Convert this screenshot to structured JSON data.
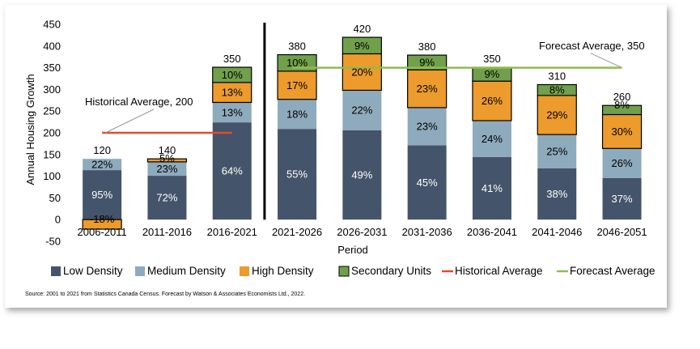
{
  "chart_data": {
    "type": "bar",
    "stacked": true,
    "xlabel": "Period",
    "ylabel": "Annual Housing Growth",
    "ylim": [
      -50,
      450
    ],
    "yticks": [
      -50,
      0,
      50,
      100,
      150,
      200,
      250,
      300,
      350,
      400,
      450
    ],
    "categories": [
      "2006-2011",
      "2011-2016",
      "2016-2021",
      "2021-2026",
      "2026-2031",
      "2031-2036",
      "2036-2041",
      "2041-2046",
      "2046-2051"
    ],
    "totals": [
      120,
      140,
      350,
      380,
      420,
      380,
      350,
      310,
      260
    ],
    "series": [
      {
        "name": "Low Density",
        "color": "#44546a",
        "percents": [
          95,
          72,
          64,
          55,
          49,
          45,
          41,
          38,
          37
        ],
        "values": [
          114,
          101,
          224,
          209,
          206,
          171,
          144,
          118,
          96
        ]
      },
      {
        "name": "Medium Density",
        "color": "#8eaabd",
        "percents": [
          22,
          23,
          13,
          18,
          22,
          23,
          24,
          25,
          26
        ],
        "values": [
          26,
          32,
          46,
          68,
          92,
          87,
          84,
          78,
          68
        ]
      },
      {
        "name": "High Density",
        "color": "#ec9b2c",
        "percents": [
          -18,
          5,
          13,
          17,
          20,
          23,
          26,
          29,
          30
        ],
        "values": [
          -22,
          7,
          46,
          65,
          84,
          87,
          91,
          90,
          78
        ]
      },
      {
        "name": "Secondary Units",
        "color": "#70a04b",
        "percents": [
          null,
          null,
          10,
          10,
          9,
          9,
          9,
          8,
          8
        ],
        "values": [
          0,
          0,
          35,
          38,
          38,
          34,
          32,
          25,
          21
        ]
      }
    ],
    "historical_average": {
      "label": "Historical Average",
      "value": 200,
      "annotation": "Historical Average, 200",
      "color": "#e64a2e",
      "from_category": 0,
      "to_category": 2
    },
    "forecast_average": {
      "label": "Forecast Average",
      "value": 350,
      "annotation": "Forecast Average, 350",
      "color": "#8ebd4f",
      "from_category": 3,
      "to_category": 8
    },
    "divider_after_category": 2,
    "legend_position": "bottom",
    "grid": false
  },
  "source_note": "Source: 2001 to 2021 from Statistics Canada Census. Forecast by Watson & Associates Economists Ltd., 2022.",
  "text_colors": {
    "on_dark": "#ffffff",
    "on_light": "#000000"
  }
}
